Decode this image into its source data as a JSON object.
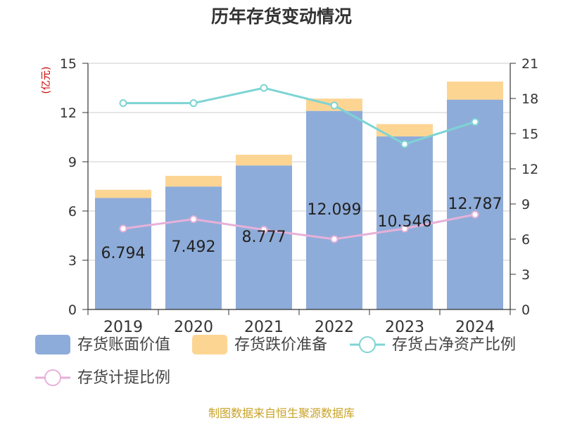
{
  "colors": {
    "book_value": "#8eacd9",
    "impairment": "#fdd593",
    "net_asset_ratio": "#7dd4d4",
    "provision_ratio": "#e6b1d9",
    "grid": "#cccccc",
    "axis": "#333333",
    "unit_label": "#cc0000",
    "source_text": "#c9a227"
  },
  "chart_data": {
    "type": "bar",
    "title": "历年存货变动情况",
    "categories": [
      "2019",
      "2020",
      "2021",
      "2022",
      "2023",
      "2024"
    ],
    "left_axis": {
      "unit_label": "(亿元)",
      "ylim": [
        0,
        15
      ],
      "ticks": [
        "0",
        "3",
        "6",
        "9",
        "12",
        "15"
      ]
    },
    "right_axis": {
      "ylim": [
        0,
        21
      ],
      "ticks": [
        "0",
        "3",
        "6",
        "9",
        "12",
        "15",
        "18",
        "21"
      ]
    },
    "grid": true,
    "legend_position": "bottom",
    "series": [
      {
        "name": "存货账面价值",
        "kind": "bar",
        "stack": "inventory",
        "axis": "left",
        "values": [
          6.794,
          7.492,
          8.777,
          12.099,
          10.546,
          12.787
        ],
        "labels": [
          "6.794",
          "7.492",
          "8.777",
          "12.099",
          "10.546",
          "12.787"
        ]
      },
      {
        "name": "存货跌价准备",
        "kind": "bar",
        "stack": "inventory",
        "axis": "left",
        "values": [
          0.5,
          0.65,
          0.65,
          0.75,
          0.75,
          1.1
        ]
      },
      {
        "name": "存货占净资产比例",
        "kind": "line",
        "axis": "right",
        "values": [
          17.6,
          17.6,
          18.9,
          17.4,
          14.1,
          16.0
        ]
      },
      {
        "name": "存货计提比例",
        "kind": "line",
        "axis": "right",
        "values": [
          6.9,
          7.7,
          6.8,
          6.0,
          6.9,
          8.1
        ]
      }
    ]
  },
  "source": "制图数据来自恒生聚源数据库"
}
